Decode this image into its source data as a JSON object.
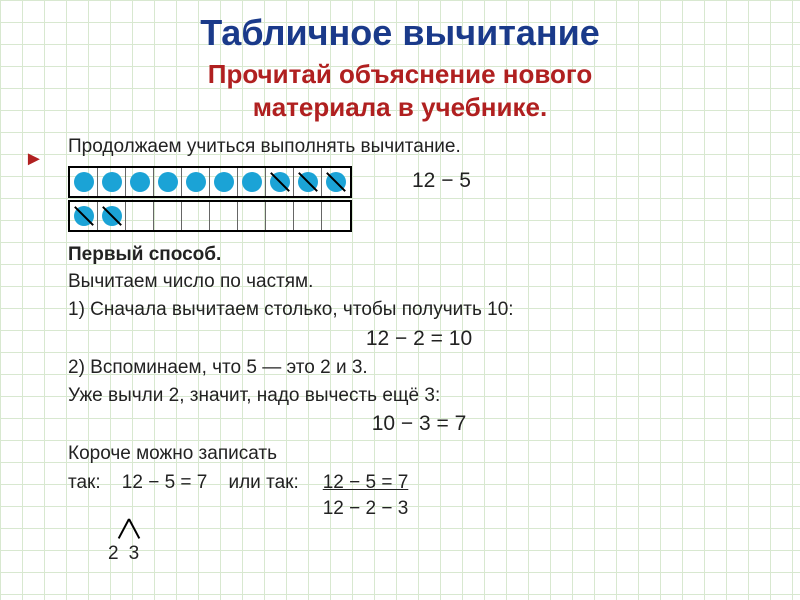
{
  "colors": {
    "title": "#1a3a8a",
    "subtitle": "#b02020",
    "dot_fill": "#1ba3d6",
    "text": "#222222",
    "grid": "#d8e8d0"
  },
  "title": "Табличное вычитание",
  "subtitle_line1": "Прочитай  объяснение  нового",
  "subtitle_line2": "материала в  учебнике.",
  "intro": "Продолжаем учиться выполнять вычитание.",
  "boxes": {
    "row1": {
      "cells": 10,
      "filled": [
        true,
        true,
        true,
        true,
        true,
        true,
        true,
        true,
        true,
        true
      ],
      "slashed": [
        false,
        false,
        false,
        false,
        false,
        false,
        false,
        true,
        true,
        true
      ]
    },
    "row2": {
      "cells": 10,
      "filled": [
        true,
        true,
        false,
        false,
        false,
        false,
        false,
        false,
        false,
        false
      ],
      "slashed": [
        true,
        true,
        false,
        false,
        false,
        false,
        false,
        false,
        false,
        false
      ]
    },
    "side_expr": "12 − 5"
  },
  "method_title": "Первый способ.",
  "line_parts": "Вычитаем число по частям.",
  "step1a": "1) Сначала вычитаем столько, чтобы получить 10:",
  "eq1": "12 − 2 = 10",
  "step2a": "2) Вспоминаем, что 5 — это 2 и 3.",
  "step2b": "Уже вычли 2, значит, надо вычесть ещё 3:",
  "eq2": "10 − 3 = 7",
  "short1": "Короче можно записать",
  "short2_prefix": "так:",
  "final_left": "12 − 5 = 7",
  "or_word": "или так:",
  "final_top": "12 − 5 = 7",
  "final_bottom": "12 − 2 − 3",
  "split_left": "2",
  "split_right": "3"
}
